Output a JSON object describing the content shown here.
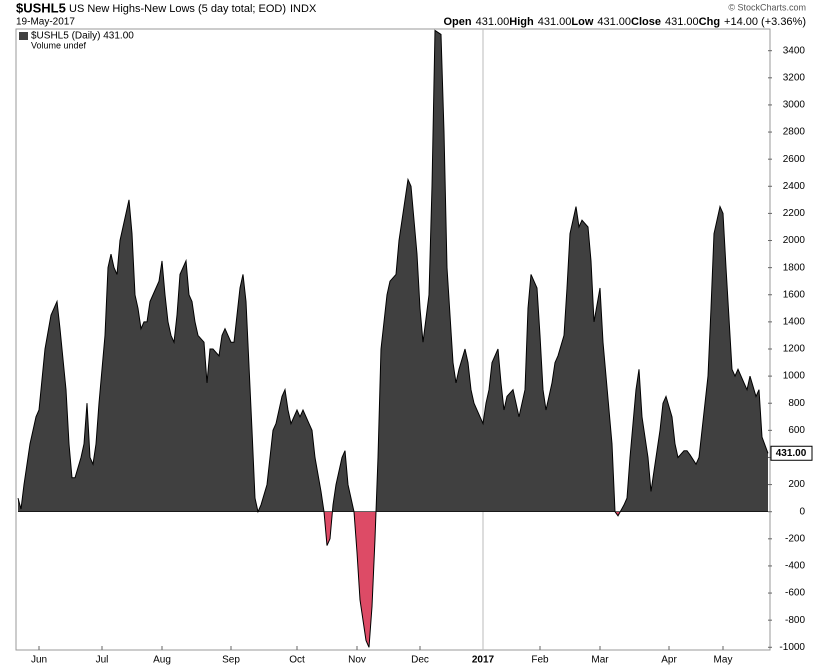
{
  "chart_data": {
    "type": "area",
    "symbol": "$USHL5",
    "title": "US New Highs-New Lows (5 day total; EOD)",
    "exchange": "INDX",
    "date": "19-May-2017",
    "copyright": "© StockCharts.com",
    "quote": [
      {
        "label": "Open",
        "value": "431.00"
      },
      {
        "label": "High",
        "value": "431.00"
      },
      {
        "label": "Low",
        "value": "431.00"
      },
      {
        "label": "Close",
        "value": "431.00"
      },
      {
        "label": "Chg",
        "value": "+14.00 (+3.36%)"
      }
    ],
    "legend": [
      "$USHL5 (Daily) 431.00",
      "Volume undef"
    ],
    "last_value_label": "431.00",
    "positive_color": "#404040",
    "negative_color": "#dd4b66",
    "x": [
      0,
      1,
      2,
      4,
      6,
      7,
      9,
      11,
      13,
      14,
      16,
      17,
      18,
      19,
      21,
      22,
      23,
      24,
      25,
      26,
      27,
      29,
      30,
      31,
      32,
      33,
      34,
      36,
      37,
      38,
      39,
      40,
      41,
      42,
      43,
      44,
      46,
      47,
      48,
      49,
      50,
      51,
      52,
      53,
      54,
      56,
      57,
      58,
      59,
      60,
      62,
      63,
      64,
      65,
      67,
      68,
      69,
      71,
      72,
      73,
      74,
      75,
      76,
      78,
      79,
      80,
      81,
      83,
      84,
      85,
      86,
      88,
      89,
      90,
      91,
      93,
      94,
      95,
      97,
      98,
      99,
      101,
      102,
      103,
      104,
      105,
      106,
      108,
      109,
      110,
      112,
      113,
      114,
      116,
      117,
      118,
      119,
      120,
      121,
      123,
      124,
      126,
      127,
      129,
      130,
      131,
      133,
      134,
      135,
      137,
      138,
      139,
      141,
      142,
      143,
      145,
      146,
      147,
      149,
      150,
      151,
      152,
      154,
      155,
      156,
      157,
      158,
      160,
      161,
      162,
      163,
      165,
      166,
      167,
      169,
      170,
      171,
      173,
      174,
      175,
      176,
      178,
      179,
      180,
      182,
      183,
      184,
      186,
      187,
      188,
      190,
      191,
      192,
      194,
      195,
      196,
      198,
      199,
      200,
      202,
      203,
      204,
      206,
      207,
      208,
      210,
      211,
      212,
      214,
      215,
      216,
      218,
      219,
      220,
      222,
      223,
      224,
      226,
      227,
      228,
      230,
      231,
      232,
      234,
      235,
      236,
      238,
      239,
      240,
      242,
      243,
      244,
      246,
      247,
      248,
      250
    ],
    "values": [
      100,
      20,
      200,
      500,
      700,
      750,
      1200,
      1450,
      1550,
      1350,
      900,
      500,
      250,
      250,
      400,
      500,
      800,
      400,
      350,
      500,
      800,
      1300,
      1800,
      1900,
      1800,
      1750,
      2000,
      2200,
      2300,
      2050,
      1600,
      1500,
      1350,
      1400,
      1400,
      1550,
      1650,
      1700,
      1850,
      1600,
      1400,
      1300,
      1250,
      1450,
      1750,
      1850,
      1600,
      1550,
      1400,
      1300,
      1250,
      950,
      1200,
      1200,
      1150,
      1300,
      1350,
      1250,
      1250,
      1450,
      1650,
      1750,
      1550,
      600,
      100,
      0,
      50,
      200,
      400,
      600,
      650,
      850,
      900,
      750,
      650,
      750,
      700,
      750,
      650,
      600,
      400,
      150,
      0,
      -250,
      -200,
      50,
      200,
      400,
      450,
      200,
      0,
      -300,
      -650,
      -950,
      -1000,
      -700,
      -200,
      400,
      1200,
      1600,
      1700,
      1750,
      2000,
      2300,
      2450,
      2400,
      1900,
      1500,
      1250,
      1600,
      2400,
      3550,
      3520,
      2800,
      1800,
      1100,
      950,
      1050,
      1200,
      1100,
      900,
      800,
      700,
      650,
      800,
      900,
      1100,
      1200,
      950,
      750,
      850,
      900,
      800,
      700,
      900,
      1500,
      1750,
      1650,
      1300,
      900,
      750,
      950,
      1100,
      1150,
      1300,
      1650,
      2050,
      2250,
      2100,
      2150,
      2100,
      1850,
      1400,
      1650,
      1250,
      1000,
      500,
      0,
      -30,
      50,
      100,
      400,
      900,
      1050,
      700,
      400,
      150,
      300,
      600,
      800,
      850,
      700,
      500,
      400,
      450,
      450,
      420,
      350,
      400,
      600,
      1000,
      1500,
      2050,
      2250,
      2200,
      1800,
      1050,
      1000,
      1050,
      950,
      900,
      1000,
      850,
      900,
      550,
      431
    ],
    "xlim": [
      0,
      250
    ],
    "xticks": [
      {
        "value": 7,
        "label": "Jun"
      },
      {
        "value": 28,
        "label": "Jul"
      },
      {
        "value": 48,
        "label": "Aug"
      },
      {
        "value": 71,
        "label": "Sep"
      },
      {
        "value": 93,
        "label": "Oct"
      },
      {
        "value": 113,
        "label": "Nov"
      },
      {
        "value": 134,
        "label": "Dec"
      },
      {
        "value": 155,
        "label": "2017"
      },
      {
        "value": 174,
        "label": "Feb"
      },
      {
        "value": 194,
        "label": "Mar"
      },
      {
        "value": 217,
        "label": "Apr"
      },
      {
        "value": 235,
        "label": "May"
      }
    ],
    "year_tick": 7,
    "ylim": [
      -1020,
      3560
    ],
    "yticks": [
      -1000,
      -800,
      -600,
      -400,
      -200,
      0,
      200,
      400,
      600,
      800,
      1000,
      1200,
      1400,
      1600,
      1800,
      2000,
      2200,
      2400,
      2600,
      2800,
      3000,
      3200,
      3400
    ],
    "grid": false
  }
}
